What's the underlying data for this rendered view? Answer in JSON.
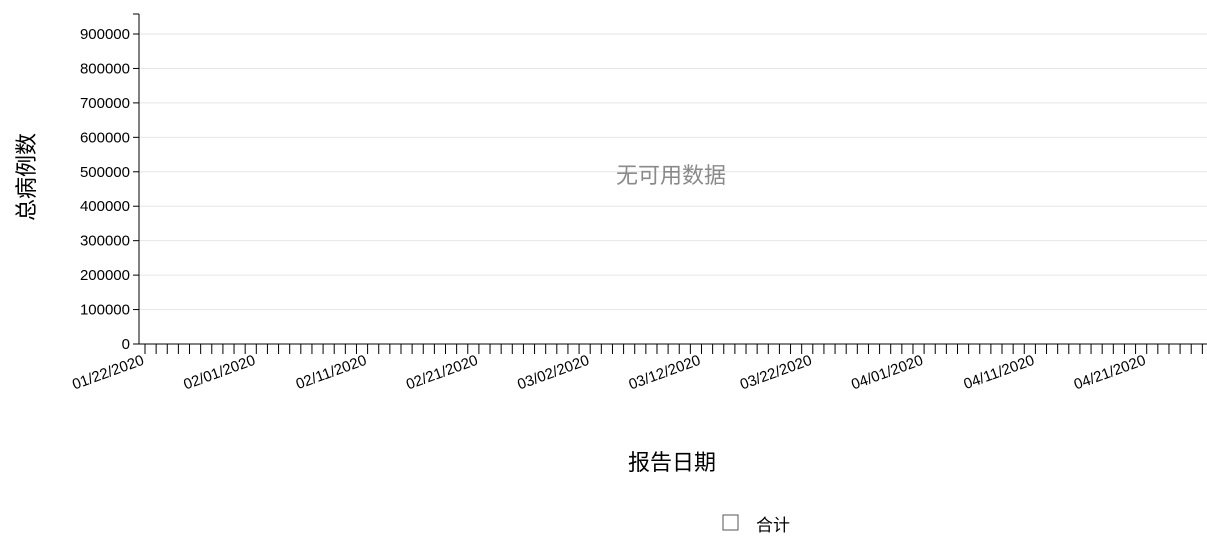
{
  "chart_data": {
    "type": "line",
    "title": "",
    "ylabel": "总病例数",
    "xlabel": "报告日期",
    "empty_message": "无可用数据",
    "ylim": [
      0,
      900000
    ],
    "y_ticks": [
      0,
      100000,
      200000,
      300000,
      400000,
      500000,
      600000,
      700000,
      800000,
      900000
    ],
    "y_tick_labels": [
      "0",
      "100000",
      "200000",
      "300000",
      "400000",
      "500000",
      "600000",
      "700000",
      "800000",
      "900000"
    ],
    "x_range": [
      "01/22/2020",
      "04/30/2020"
    ],
    "x_tick_labels": [
      "01/22/2020",
      "02/01/2020",
      "02/11/2020",
      "02/21/2020",
      "03/02/2020",
      "03/12/2020",
      "03/22/2020",
      "04/01/2020",
      "04/11/2020",
      "04/21/2020"
    ],
    "grid": true,
    "legend_position": "bottom-center",
    "series": [
      {
        "name": "合计",
        "values": []
      }
    ]
  },
  "colors": {
    "gridline": "#e6e6e6",
    "axis": "#000000",
    "empty_message": "#8a8a8a",
    "legend_box_stroke": "#555555"
  }
}
